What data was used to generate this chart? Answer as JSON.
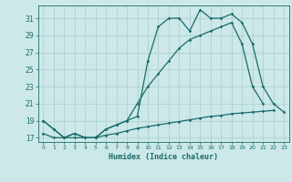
{
  "xlabel": "Humidex (Indice chaleur)",
  "bg_color": "#cce8e8",
  "grid_color": "#aacccc",
  "line_color": "#1a6b6b",
  "x_values": [
    0,
    1,
    2,
    3,
    4,
    5,
    6,
    7,
    8,
    9,
    10,
    11,
    12,
    13,
    14,
    15,
    16,
    17,
    18,
    19,
    20,
    21,
    22,
    23
  ],
  "line1": [
    19,
    18,
    17,
    17.5,
    17,
    17,
    18,
    18.5,
    19,
    19.5,
    26,
    30,
    31,
    31,
    29.5,
    32,
    31,
    31,
    31.5,
    30.5,
    28,
    23,
    21,
    20
  ],
  "line2": [
    19,
    18,
    17,
    17.5,
    17,
    17,
    18,
    18.5,
    19,
    21,
    23,
    24.5,
    26,
    27.5,
    28.5,
    29,
    29.5,
    30,
    30.5,
    28,
    23,
    21,
    null,
    null
  ],
  "line3": [
    17.5,
    17,
    17,
    17,
    17,
    17,
    17.3,
    17.5,
    17.8,
    18.1,
    18.3,
    18.5,
    18.7,
    18.9,
    19.1,
    19.3,
    19.5,
    19.6,
    19.8,
    19.9,
    20.0,
    20.1,
    20.2,
    null
  ],
  "ylim": [
    16.5,
    32.5
  ],
  "xlim": [
    -0.5,
    23.5
  ],
  "yticks": [
    17,
    19,
    21,
    23,
    25,
    27,
    29,
    31
  ],
  "xticks": [
    0,
    1,
    2,
    3,
    4,
    5,
    6,
    7,
    8,
    9,
    10,
    11,
    12,
    13,
    14,
    15,
    16,
    17,
    18,
    19,
    20,
    21,
    22,
    23
  ]
}
